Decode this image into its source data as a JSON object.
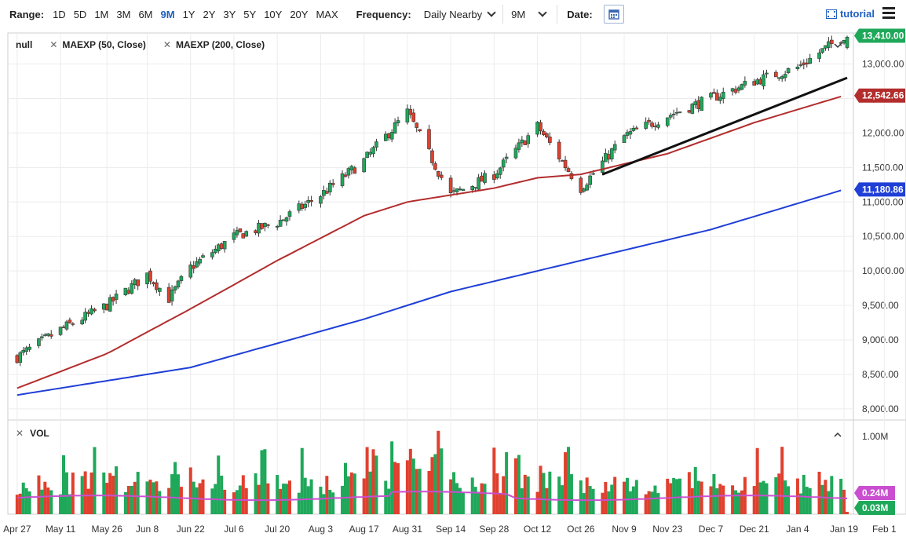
{
  "toolbar": {
    "range_label": "Range:",
    "ranges": [
      "1D",
      "5D",
      "1M",
      "3M",
      "6M",
      "9M",
      "1Y",
      "2Y",
      "3Y",
      "5Y",
      "10Y",
      "20Y",
      "MAX"
    ],
    "active_range": "9M",
    "frequency_label": "Frequency:",
    "frequency_value": "Daily Nearby",
    "period_value": "9M",
    "date_label": "Date:",
    "tutorial_label": "tutorial"
  },
  "legend": {
    "items": [
      "null",
      "MAEXP (50, Close)",
      "MAEXP (200, Close)"
    ]
  },
  "volume_panel": {
    "title": "VOL"
  },
  "colors": {
    "up": "#1fa85a",
    "down": "#e0402e",
    "ma50": "#b32d2d",
    "ma200": "#1f3fd6",
    "vol_ma": "#c94fd0",
    "trendline": "#111111",
    "active_range": "#1f5fbf"
  },
  "chart_data": [
    {
      "type": "candlestick",
      "y_ticks": [
        "13,000.00",
        "12,500.00",
        "12,000.00",
        "11,500.00",
        "11,000.00",
        "10,500.00",
        "10,000.00",
        "9,500.00",
        "9,000.00",
        "8,500.00",
        "8,000.00"
      ],
      "y_tick_values": [
        13000,
        12500,
        12000,
        11500,
        11000,
        10500,
        10000,
        9500,
        9000,
        8500,
        8000
      ],
      "ylim": [
        7850,
        13450
      ],
      "x_tick_labels": [
        "Apr 27",
        "May 11",
        "May 26",
        "Jun 8",
        "Jun 22",
        "Jul 6",
        "Jul 20",
        "Aug 3",
        "Aug 17",
        "Aug 31",
        "Sep 14",
        "Sep 28",
        "Oct 12",
        "Oct 26",
        "Nov 9",
        "Nov 23",
        "Dec 7",
        "Dec 21",
        "Jan 4",
        "Jan 19",
        "Feb 1"
      ],
      "price_path": [
        [
          "Apr 27",
          8750
        ],
        [
          "May 11",
          9150
        ],
        [
          "May 26",
          9500
        ],
        [
          "Jun 8",
          9950
        ],
        [
          "Jun 15",
          9600
        ],
        [
          "Jun 22",
          10050
        ],
        [
          "Jul 6",
          10500
        ],
        [
          "Jul 20",
          10700
        ],
        [
          "Aug 3",
          11100
        ],
        [
          "Aug 17",
          11600
        ],
        [
          "Aug 31",
          12300
        ],
        [
          "Sep 14",
          11100
        ],
        [
          "Sep 28",
          11400
        ],
        [
          "Oct 12",
          12100
        ],
        [
          "Oct 26",
          11200
        ],
        [
          "Nov 9",
          11950
        ],
        [
          "Nov 23",
          12250
        ],
        [
          "Dec 7",
          12500
        ],
        [
          "Dec 21",
          12750
        ],
        [
          "Jan 4",
          12950
        ],
        [
          "Jan 19",
          13410
        ]
      ],
      "ma50_path": [
        [
          "Apr 27",
          8300
        ],
        [
          "May 26",
          8800
        ],
        [
          "Jun 22",
          9450
        ],
        [
          "Jul 20",
          10150
        ],
        [
          "Aug 17",
          10800
        ],
        [
          "Aug 31",
          11000
        ],
        [
          "Sep 28",
          11200
        ],
        [
          "Oct 12",
          11350
        ],
        [
          "Oct 26",
          11400
        ],
        [
          "Nov 23",
          11700
        ],
        [
          "Dec 21",
          12150
        ],
        [
          "Jan 19",
          12542.66
        ]
      ],
      "ma200_path": [
        [
          "Apr 27",
          8200
        ],
        [
          "Jun 22",
          8600
        ],
        [
          "Aug 17",
          9300
        ],
        [
          "Sep 14",
          9700
        ],
        [
          "Oct 12",
          10000
        ],
        [
          "Nov 9",
          10300
        ],
        [
          "Dec 7",
          10600
        ],
        [
          "Jan 19",
          11180.86
        ]
      ],
      "trendline": [
        [
          "Nov 2",
          11400
        ],
        [
          "Jan 20",
          12800
        ]
      ],
      "last_price": {
        "label": "13,410.00",
        "value": 13410
      },
      "ma50_last": {
        "label": "12,542.66",
        "value": 12542.66
      },
      "ma200_last": {
        "label": "11,180.86",
        "value": 11180.86
      }
    },
    {
      "type": "bar",
      "title": "VOL",
      "y_ticks": [
        "1.00M"
      ],
      "y_tick_values": [
        1.0
      ],
      "ylim": [
        0,
        1.2
      ],
      "unit": "M",
      "vol_ma_last": {
        "label": "0.24M",
        "value": 0.24
      },
      "last_volume": {
        "label": "0.03M",
        "value": 0.03
      }
    }
  ]
}
